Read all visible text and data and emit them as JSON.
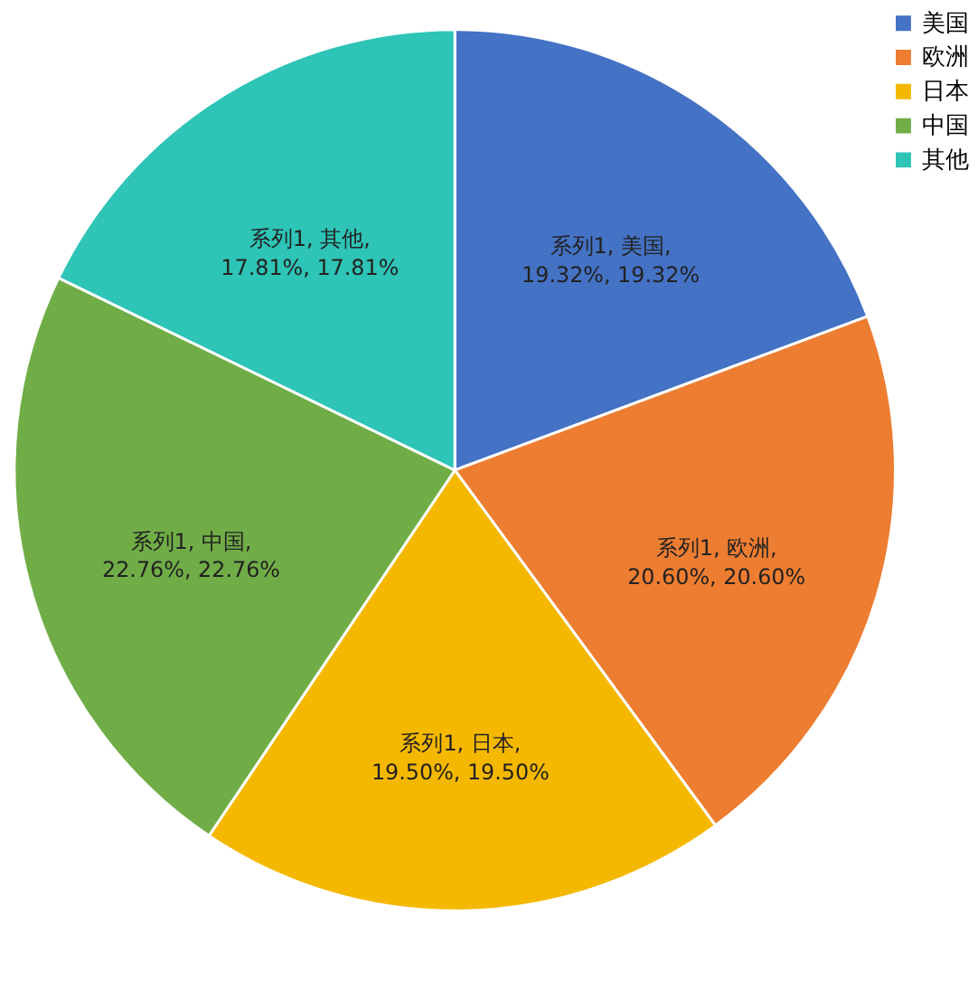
{
  "chart_data": {
    "type": "pie",
    "categories": [
      "美国",
      "欧洲",
      "日本",
      "中国",
      "其他"
    ],
    "values": [
      19.32,
      20.6,
      19.5,
      22.76,
      17.81
    ],
    "colors": [
      "#4472c4",
      "#ed7d31",
      "#f5b800",
      "#70ad47",
      "#2ec4b6"
    ],
    "value_labels": [
      "系列1, 美国, 19.32%, 19.32%",
      "系列1, 欧洲, 20.60%, 20.60%",
      "系列1, 日本, 19.50%, 19.50%",
      "系列1, 中国, 22.76%, 22.76%",
      "系列1, 其他, 17.81%, 17.81%"
    ],
    "legend": "right"
  }
}
